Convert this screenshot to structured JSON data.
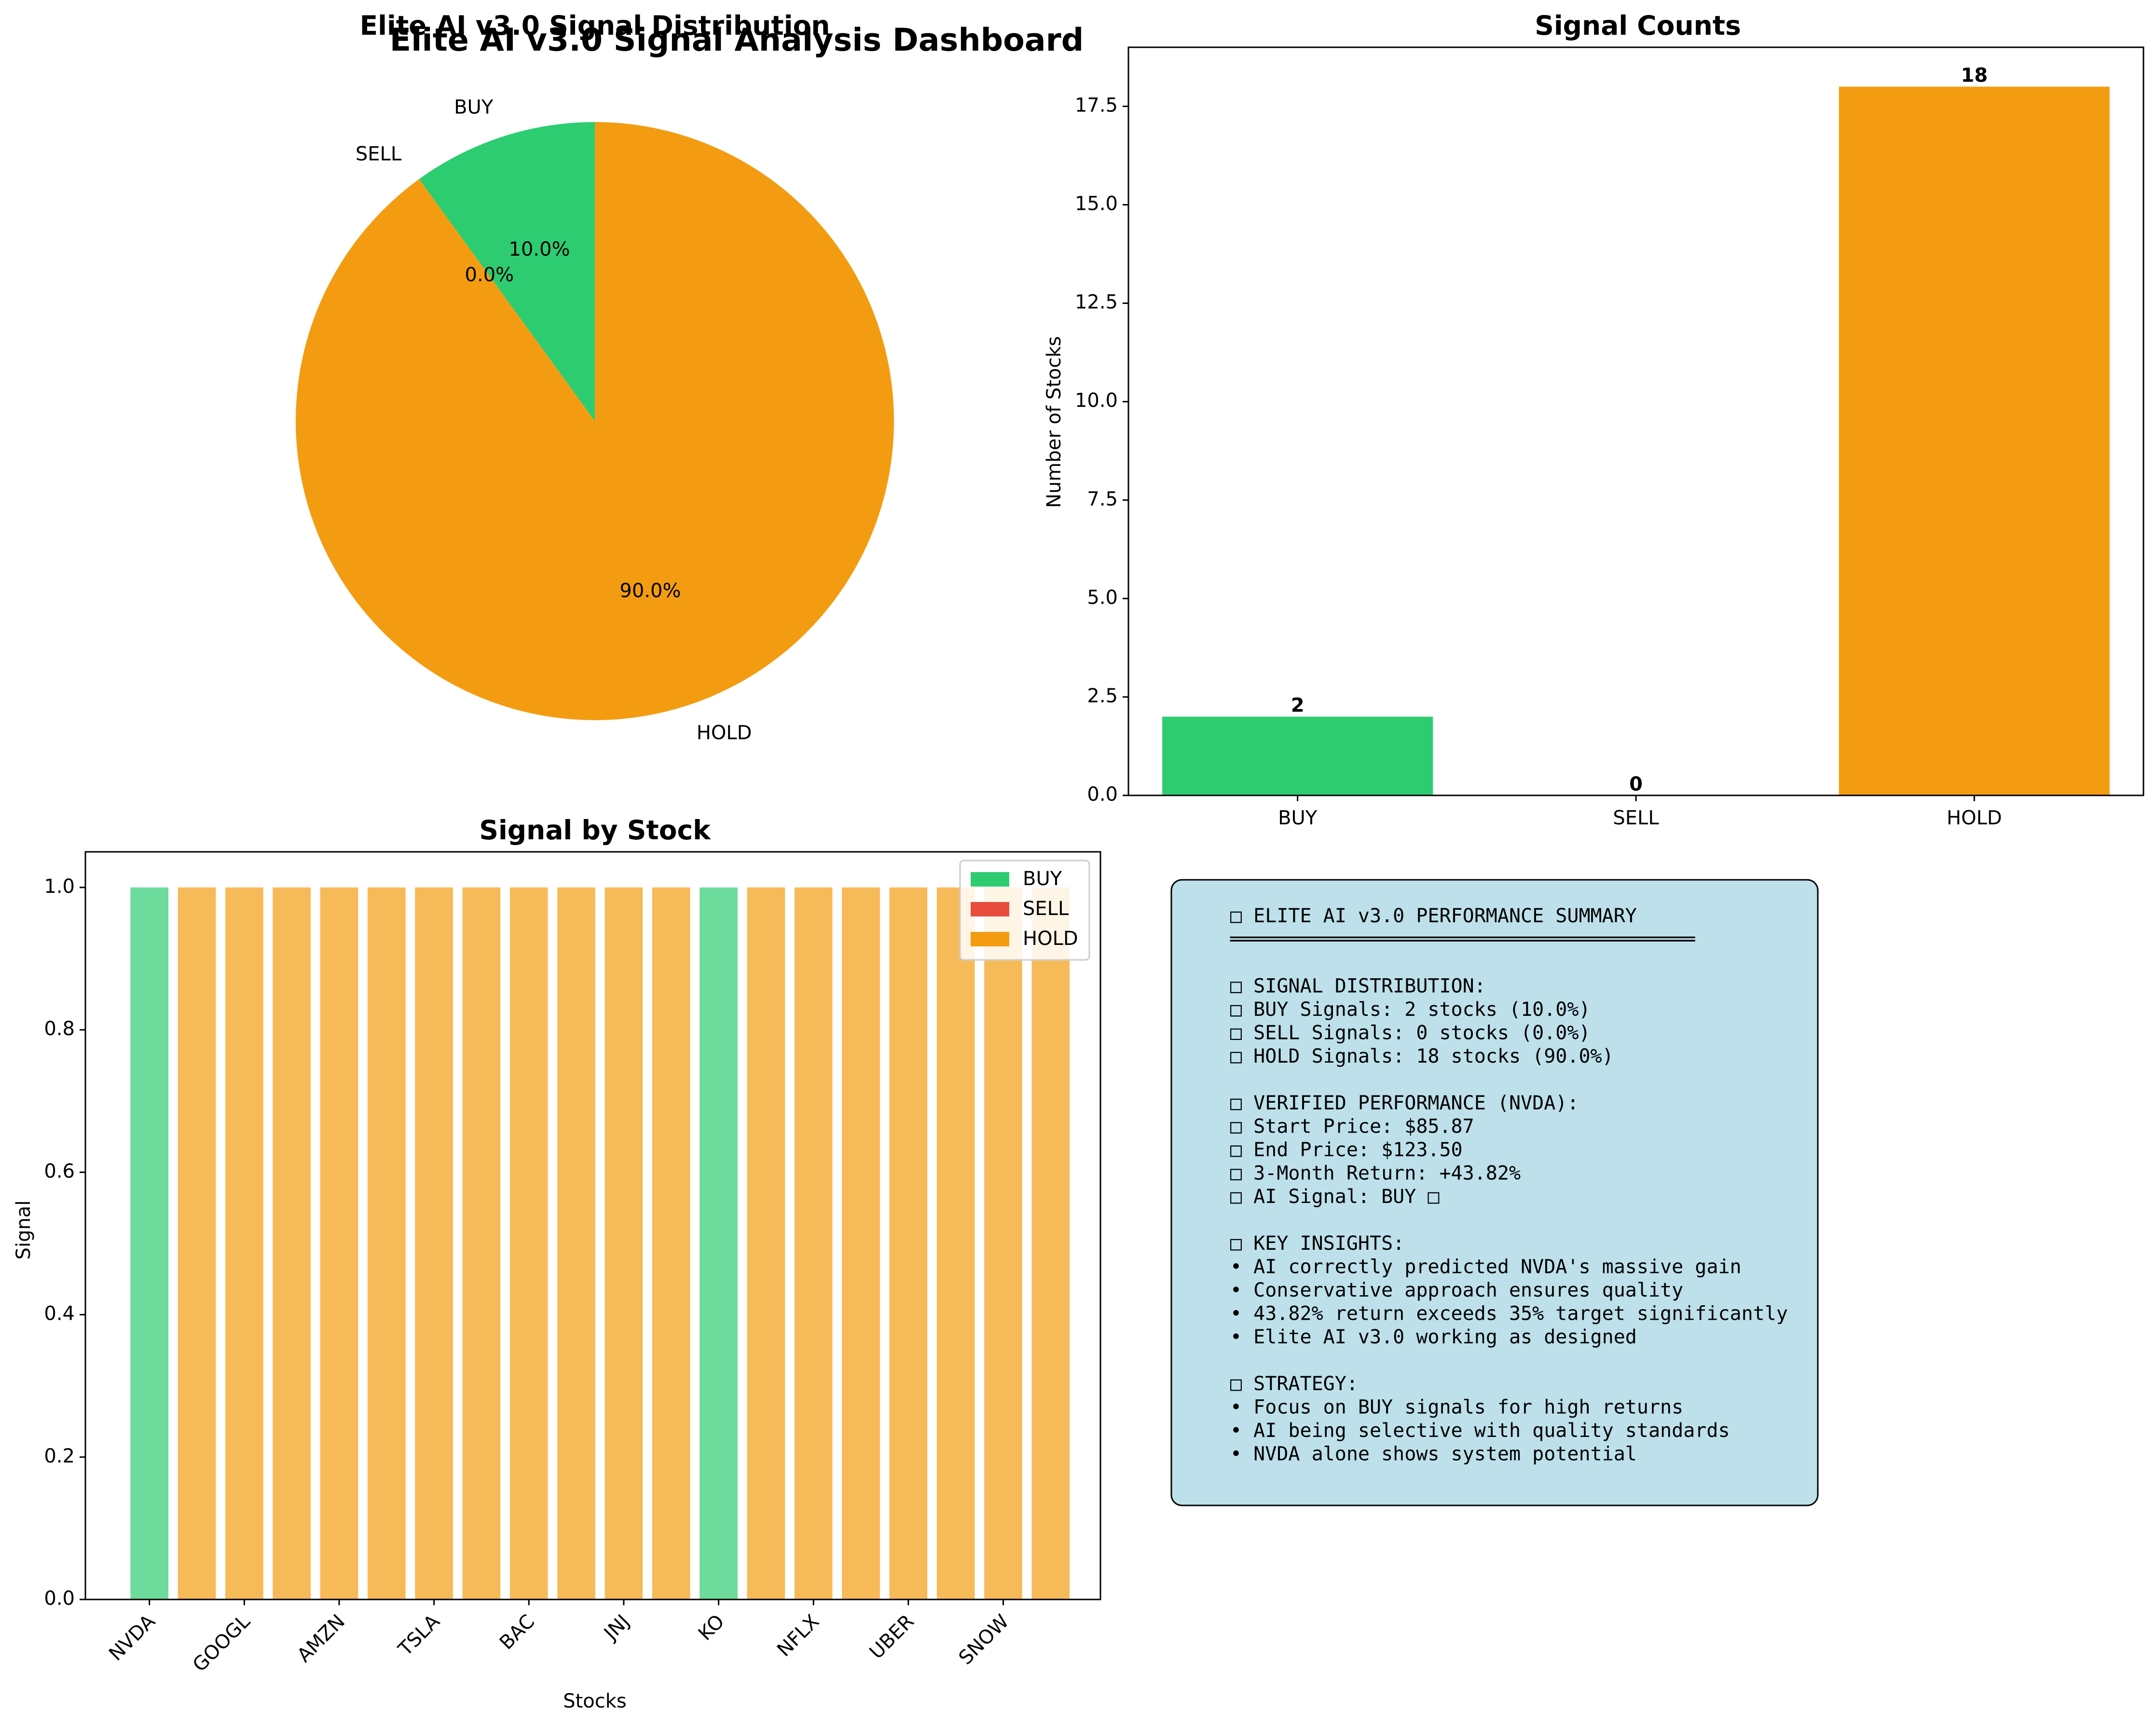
{
  "dashboard_title": "Elite AI v3.0 Signal Analysis Dashboard",
  "colors": {
    "BUY": "#2ecc71",
    "SELL": "#e74c3c",
    "HOLD": "#f39c12",
    "panel_bg": "#add8e6"
  },
  "chart_data": [
    {
      "type": "pie",
      "title": "Elite AI v3.0 Signal Distribution",
      "labels": [
        "BUY",
        "SELL",
        "HOLD"
      ],
      "values": [
        2,
        0,
        18
      ],
      "pct_labels": [
        "10.0%",
        "0.0%",
        "90.0%"
      ]
    },
    {
      "type": "bar",
      "title": "Signal Counts",
      "categories": [
        "BUY",
        "SELL",
        "HOLD"
      ],
      "values": [
        2,
        0,
        18
      ],
      "value_labels": [
        "2",
        "0",
        "18"
      ],
      "xlabel": "",
      "ylabel": "Number of Stocks",
      "ylim": [
        0,
        19
      ],
      "yticks": [
        0,
        2.5,
        5,
        7.5,
        10,
        12.5,
        15,
        17.5
      ],
      "ytick_labels": [
        "0.0",
        "2.5",
        "5.0",
        "7.5",
        "10.0",
        "12.5",
        "15.0",
        "17.5"
      ]
    },
    {
      "type": "bar",
      "title": "Signal by Stock",
      "xlabel": "Stocks",
      "ylabel": "Signal",
      "ylim": [
        0,
        1.05
      ],
      "yticks": [
        0,
        0.2,
        0.4,
        0.6,
        0.8,
        1.0
      ],
      "ytick_labels": [
        "0.0",
        "0.2",
        "0.4",
        "0.6",
        "0.8",
        "1.0"
      ],
      "signals": [
        "BUY",
        "HOLD",
        "HOLD",
        "HOLD",
        "HOLD",
        "HOLD",
        "HOLD",
        "HOLD",
        "HOLD",
        "HOLD",
        "HOLD",
        "HOLD",
        "BUY",
        "HOLD",
        "HOLD",
        "HOLD",
        "HOLD",
        "HOLD",
        "HOLD",
        "HOLD"
      ],
      "values": [
        1,
        1,
        1,
        1,
        1,
        1,
        1,
        1,
        1,
        1,
        1,
        1,
        1,
        1,
        1,
        1,
        1,
        1,
        1,
        1
      ],
      "xtick_labels": [
        "NVDA",
        "GOOGL",
        "AMZN",
        "TSLA",
        "BAC",
        "JNJ",
        "KO",
        "NFLX",
        "UBER",
        "SNOW"
      ],
      "xtick_positions": [
        0,
        2,
        4,
        6,
        8,
        10,
        12,
        14,
        16,
        18
      ],
      "legend": [
        "BUY",
        "SELL",
        "HOLD"
      ],
      "legend_position": "top-right"
    }
  ],
  "summary_lines": [
    "□ ELITE AI v3.0 PERFORMANCE SUMMARY",
    "════════════════════════════════════════",
    "",
    "□ SIGNAL DISTRIBUTION:",
    "□ BUY Signals: 2 stocks (10.0%)",
    "□ SELL Signals: 0 stocks (0.0%)",
    "□ HOLD Signals: 18 stocks (90.0%)",
    "",
    "□ VERIFIED PERFORMANCE (NVDA):",
    "□ Start Price: $85.87",
    "□ End Price: $123.50",
    "□ 3-Month Return: +43.82%",
    "□ AI Signal: BUY □",
    "",
    "□ KEY INSIGHTS:",
    "• AI correctly predicted NVDA's massive gain",
    "• Conservative approach ensures quality",
    "• 43.82% return exceeds 35% target significantly",
    "• Elite AI v3.0 working as designed",
    "",
    "□ STRATEGY:",
    "• Focus on BUY signals for high returns",
    "• AI being selective with quality standards",
    "• NVDA alone shows system potential"
  ]
}
